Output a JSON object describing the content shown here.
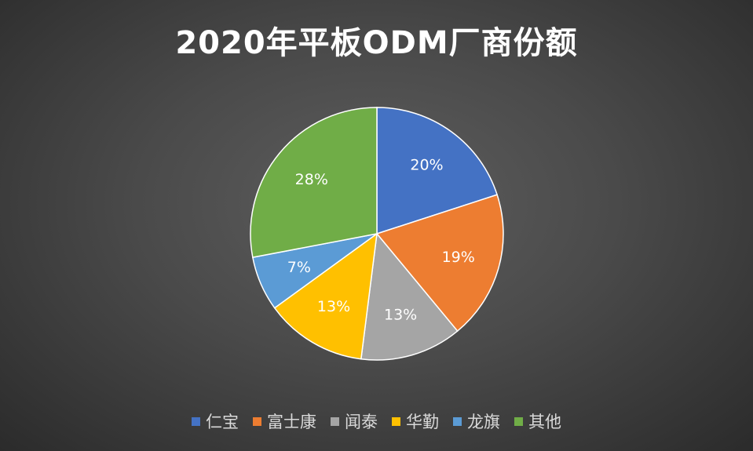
{
  "chart_data": {
    "type": "pie",
    "title": "2020年平板ODM厂商份额",
    "categories": [
      "仁宝",
      "富士康",
      "闻泰",
      "华勤",
      "龙旗",
      "其他"
    ],
    "values": [
      20,
      19,
      13,
      13,
      7,
      28
    ],
    "data_labels": [
      "20%",
      "19%",
      "13%",
      "13%",
      "7%",
      "28%"
    ],
    "colors": [
      "#4472C4",
      "#ED7D31",
      "#A5A5A5",
      "#FFC000",
      "#5B9BD5",
      "#70AD47"
    ],
    "legend_position": "bottom",
    "start_angle": "12 o'clock",
    "direction": "clockwise"
  }
}
